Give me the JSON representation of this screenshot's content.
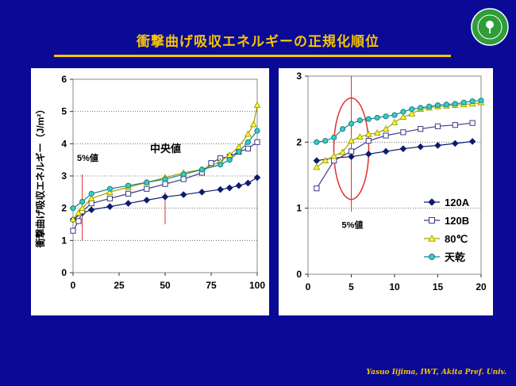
{
  "slide": {
    "title": "衝撃曲げ吸収エネルギーの正規化順位",
    "footer": "Yasuo Iijima, IWT, Akita Pref. Univ.",
    "logo_text_top": "AKITA PREFECTURAL UNIVERSITY",
    "logo_text_mid": "Akita Prefectural",
    "logo_text_bot": "University"
  },
  "colors": {
    "background": "#0a0a96",
    "accent": "#f5c400",
    "s120A": "#0d1b6e",
    "s120B": "#3a3a8a",
    "s80C_fill": "#ffff33",
    "s80C_stroke": "#a0a000",
    "sTenkan_fill": "#33cccc",
    "sTenkan_stroke": "#1a8080",
    "marker_line": "#e03030"
  },
  "chart_data": [
    {
      "type": "line",
      "ylabel": "衝撃曲げ吸収エネルギー（J/m²）",
      "xlim": [
        0,
        100
      ],
      "ylim": [
        0,
        6
      ],
      "xticks": [
        "0",
        "25",
        "50",
        "75",
        "100"
      ],
      "yticks": [
        "0",
        "1",
        "2",
        "3",
        "4",
        "5",
        "6"
      ],
      "grid": "horizontal dotted",
      "annotations": [
        {
          "text": "5%値",
          "x": 5
        },
        {
          "text": "中央値",
          "x": 50
        }
      ],
      "series": [
        {
          "name": "120A",
          "marker": "diamond",
          "x": [
            0,
            5,
            10,
            20,
            30,
            40,
            50,
            60,
            70,
            80,
            85,
            90,
            95,
            100
          ],
          "values": [
            1.65,
            1.85,
            1.95,
            2.05,
            2.15,
            2.25,
            2.35,
            2.42,
            2.5,
            2.58,
            2.63,
            2.7,
            2.78,
            2.95
          ]
        },
        {
          "name": "120B",
          "marker": "square",
          "x": [
            0,
            3,
            5,
            10,
            20,
            30,
            40,
            50,
            60,
            70,
            75,
            80,
            85,
            90,
            95,
            100
          ],
          "values": [
            1.3,
            1.6,
            1.9,
            2.15,
            2.3,
            2.45,
            2.6,
            2.75,
            2.9,
            3.1,
            3.4,
            3.55,
            3.6,
            3.75,
            3.85,
            4.05
          ]
        },
        {
          "name": "80℃",
          "marker": "triangle",
          "x": [
            0,
            3,
            5,
            10,
            20,
            30,
            40,
            50,
            60,
            70,
            80,
            85,
            90,
            95,
            98,
            100
          ],
          "values": [
            1.65,
            1.85,
            2.0,
            2.3,
            2.5,
            2.65,
            2.8,
            2.95,
            3.1,
            3.2,
            3.45,
            3.65,
            3.9,
            4.3,
            4.6,
            5.2
          ]
        },
        {
          "name": "天乾",
          "marker": "circle",
          "x": [
            0,
            5,
            10,
            20,
            30,
            40,
            50,
            60,
            70,
            80,
            85,
            90,
            95,
            100
          ],
          "values": [
            2.0,
            2.2,
            2.45,
            2.6,
            2.7,
            2.8,
            2.9,
            3.05,
            3.2,
            3.35,
            3.5,
            3.75,
            4.05,
            4.4
          ]
        }
      ]
    },
    {
      "type": "line",
      "xlim": [
        0,
        20
      ],
      "ylim": [
        0,
        3
      ],
      "xticks": [
        "0",
        "5",
        "10",
        "15",
        "20"
      ],
      "yticks": [
        "0",
        "1",
        "2",
        "3"
      ],
      "grid": "horizontal dotted",
      "annotations": [
        {
          "text": "5%値",
          "x": 5
        }
      ],
      "legend": "right-middle",
      "series": [
        {
          "name": "120A",
          "marker": "diamond",
          "x": [
            1,
            3,
            5,
            7,
            9,
            11,
            13,
            15,
            17,
            19
          ],
          "values": [
            1.72,
            1.76,
            1.78,
            1.82,
            1.86,
            1.9,
            1.93,
            1.95,
            1.98,
            2.01
          ]
        },
        {
          "name": "120B",
          "marker": "square",
          "x": [
            1,
            3,
            5,
            7,
            9,
            11,
            13,
            15,
            17,
            19
          ],
          "values": [
            1.3,
            1.72,
            1.86,
            2.02,
            2.1,
            2.15,
            2.2,
            2.24,
            2.26,
            2.29
          ]
        },
        {
          "name": "80℃",
          "marker": "triangle",
          "x": [
            1,
            2,
            3,
            4,
            5,
            6,
            7,
            8,
            9,
            10,
            11,
            12,
            13,
            14,
            15,
            16,
            17,
            18,
            19,
            20
          ],
          "values": [
            1.62,
            1.72,
            1.79,
            1.85,
            2.02,
            2.08,
            2.12,
            2.14,
            2.2,
            2.3,
            2.38,
            2.43,
            2.5,
            2.52,
            2.54,
            2.55,
            2.56,
            2.57,
            2.58,
            2.6
          ]
        },
        {
          "name": "天乾",
          "marker": "circle",
          "x": [
            1,
            2,
            3,
            4,
            5,
            6,
            7,
            8,
            9,
            10,
            11,
            12,
            13,
            14,
            15,
            16,
            17,
            18,
            19,
            20
          ],
          "values": [
            2.0,
            2.02,
            2.07,
            2.2,
            2.28,
            2.33,
            2.35,
            2.37,
            2.39,
            2.41,
            2.46,
            2.5,
            2.52,
            2.54,
            2.56,
            2.57,
            2.58,
            2.6,
            2.62,
            2.63
          ]
        }
      ]
    }
  ]
}
